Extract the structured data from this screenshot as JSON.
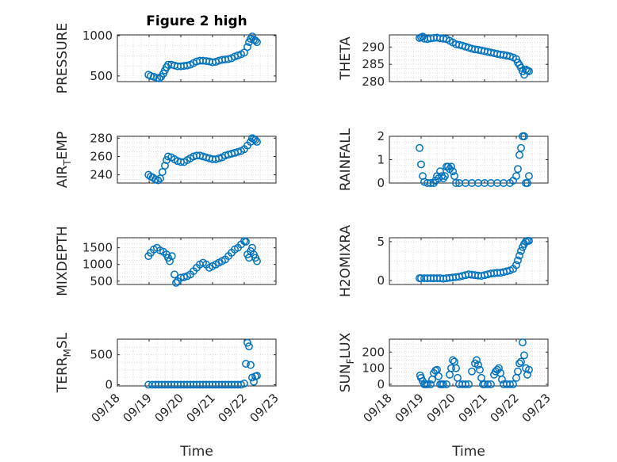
{
  "figure_title": "Figure 2 high",
  "chart_data": [
    {
      "type": "scatter",
      "title": "Figure 2 high",
      "ylabel": "PRESSURE",
      "ylabel_sub": "",
      "ylabel_rest": "",
      "xlabel": "",
      "xlim": [
        18,
        23
      ],
      "ylim": [
        430,
        1010
      ],
      "yticks": [
        500,
        1000
      ],
      "ytick_labels": [
        "500",
        "1000"
      ],
      "xticks": [
        18,
        19,
        20,
        21,
        22,
        23
      ],
      "xtick_labels": [
        "09/18",
        "09/19",
        "09/20",
        "09/21",
        "09/22",
        "09/23"
      ],
      "show_xtick_labels": false,
      "x": [
        18.98,
        19.05,
        19.15,
        19.25,
        19.32,
        19.38,
        19.45,
        19.5,
        19.55,
        19.6,
        19.7,
        19.8,
        19.9,
        20.0,
        20.1,
        20.2,
        20.3,
        20.4,
        20.5,
        20.6,
        20.7,
        20.8,
        20.9,
        21.0,
        21.1,
        21.2,
        21.3,
        21.4,
        21.5,
        21.6,
        21.7,
        21.8,
        21.9,
        22.0,
        22.1,
        22.15,
        22.2,
        22.25,
        22.3,
        22.35,
        22.4
      ],
      "y": [
        515,
        500,
        490,
        475,
        470,
        490,
        530,
        570,
        610,
        640,
        640,
        630,
        620,
        620,
        625,
        630,
        640,
        660,
        680,
        690,
        690,
        685,
        680,
        670,
        675,
        690,
        700,
        705,
        710,
        720,
        740,
        755,
        770,
        790,
        860,
        920,
        960,
        990,
        950,
        940,
        920
      ]
    },
    {
      "type": "scatter",
      "title": "",
      "ylabel": "THETA",
      "ylabel_sub": "",
      "ylabel_rest": "",
      "xlabel": "",
      "xlim": [
        18,
        23
      ],
      "ylim": [
        280,
        293.5
      ],
      "yticks": [
        280,
        285,
        290
      ],
      "ytick_labels": [
        "280",
        "285",
        "290"
      ],
      "xticks": [
        18,
        19,
        20,
        21,
        22,
        23
      ],
      "xtick_labels": [
        "09/18",
        "09/19",
        "09/20",
        "09/21",
        "09/22",
        "09/23"
      ],
      "show_xtick_labels": false,
      "x": [
        18.95,
        19.0,
        19.05,
        19.1,
        19.2,
        19.3,
        19.4,
        19.5,
        19.6,
        19.7,
        19.8,
        19.9,
        20.0,
        20.1,
        20.2,
        20.3,
        20.4,
        20.5,
        20.6,
        20.7,
        20.8,
        20.9,
        21.0,
        21.1,
        21.2,
        21.3,
        21.4,
        21.5,
        21.6,
        21.7,
        21.8,
        21.9,
        22.0,
        22.05,
        22.1,
        22.15,
        22.2,
        22.25,
        22.3,
        22.35,
        22.4
      ],
      "y": [
        292.6,
        292.8,
        293.0,
        292.4,
        292.3,
        292.5,
        292.6,
        292.7,
        292.5,
        292.4,
        292.3,
        291.8,
        291.3,
        290.8,
        290.6,
        290.4,
        290.1,
        289.8,
        289.5,
        289.3,
        289.2,
        289.0,
        288.8,
        288.6,
        288.4,
        288.2,
        288.0,
        287.8,
        287.7,
        287.5,
        287.3,
        287.0,
        286.5,
        285.5,
        284.8,
        284.0,
        283.0,
        282.0,
        283.5,
        283.2,
        283.0
      ]
    },
    {
      "type": "scatter",
      "title": "",
      "ylabel": "AIR",
      "ylabel_sub": "T",
      "ylabel_rest": "EMP",
      "xlabel": "",
      "xlim": [
        18,
        23
      ],
      "ylim": [
        231,
        282
      ],
      "yticks": [
        240,
        260,
        280
      ],
      "ytick_labels": [
        "240",
        "260",
        "280"
      ],
      "xticks": [
        18,
        19,
        20,
        21,
        22,
        23
      ],
      "xtick_labels": [
        "09/18",
        "09/19",
        "09/20",
        "09/21",
        "09/22",
        "09/23"
      ],
      "show_xtick_labels": false,
      "x": [
        18.98,
        19.05,
        19.12,
        19.2,
        19.28,
        19.35,
        19.42,
        19.5,
        19.55,
        19.6,
        19.7,
        19.8,
        19.9,
        20.0,
        20.1,
        20.2,
        20.3,
        20.4,
        20.5,
        20.6,
        20.7,
        20.8,
        20.9,
        21.0,
        21.1,
        21.2,
        21.3,
        21.4,
        21.5,
        21.6,
        21.7,
        21.8,
        21.9,
        22.0,
        22.1,
        22.2,
        22.25,
        22.3,
        22.35,
        22.4
      ],
      "y": [
        240,
        238,
        237,
        235,
        234,
        236,
        243,
        250,
        256,
        260,
        259,
        257,
        255,
        254,
        254,
        256,
        258,
        260,
        261,
        261,
        260,
        259,
        258,
        257,
        257,
        258,
        259,
        261,
        262,
        263,
        264,
        265,
        266,
        268,
        272,
        276,
        280,
        279,
        278,
        276
      ]
    },
    {
      "type": "scatter",
      "title": "",
      "ylabel": "RAINFALL",
      "ylabel_sub": "",
      "ylabel_rest": "",
      "xlabel": "",
      "xlim": [
        18,
        23
      ],
      "ylim": [
        0,
        2
      ],
      "yticks": [
        0,
        1,
        2
      ],
      "ytick_labels": [
        "0",
        "1",
        "2"
      ],
      "xticks": [
        18,
        19,
        20,
        21,
        22,
        23
      ],
      "xtick_labels": [
        "09/18",
        "09/19",
        "09/20",
        "09/21",
        "09/22",
        "09/23"
      ],
      "show_xtick_labels": false,
      "x": [
        18.95,
        19.0,
        19.05,
        19.1,
        19.2,
        19.3,
        19.4,
        19.45,
        19.5,
        19.55,
        19.6,
        19.65,
        19.7,
        19.75,
        19.8,
        19.85,
        19.9,
        19.95,
        20.0,
        20.05,
        20.1,
        20.2,
        20.4,
        20.6,
        20.8,
        21.0,
        21.2,
        21.4,
        21.6,
        21.8,
        21.9,
        22.0,
        22.05,
        22.1,
        22.15,
        22.2,
        22.25,
        22.3,
        22.35,
        22.4
      ],
      "y": [
        1.5,
        0.8,
        0.3,
        0.05,
        0.0,
        0.0,
        0.0,
        0.1,
        0.3,
        0.2,
        0.5,
        0.3,
        0.2,
        0.3,
        0.7,
        0.7,
        0.6,
        0.7,
        0.5,
        0.3,
        0.0,
        0.0,
        0.0,
        0.0,
        0.0,
        0.0,
        0.0,
        0.0,
        0.0,
        0.0,
        0.1,
        0.3,
        0.6,
        1.2,
        1.5,
        2.0,
        2.0,
        0.0,
        0.0,
        0.3
      ]
    },
    {
      "type": "scatter",
      "title": "",
      "ylabel": "MIXDEPTH",
      "ylabel_sub": "",
      "ylabel_rest": "",
      "xlabel": "",
      "xlim": [
        18,
        23
      ],
      "ylim": [
        400,
        1800
      ],
      "yticks": [
        500,
        1000,
        1500
      ],
      "ytick_labels": [
        "500",
        "1000",
        "1500"
      ],
      "xticks": [
        18,
        19,
        20,
        21,
        22,
        23
      ],
      "xtick_labels": [
        "09/18",
        "09/19",
        "09/20",
        "09/21",
        "09/22",
        "09/23"
      ],
      "show_xtick_labels": false,
      "x": [
        18.98,
        19.05,
        19.15,
        19.25,
        19.35,
        19.45,
        19.55,
        19.6,
        19.65,
        19.72,
        19.8,
        19.85,
        19.9,
        20.0,
        20.1,
        20.2,
        20.3,
        20.4,
        20.5,
        20.6,
        20.7,
        20.8,
        20.9,
        21.0,
        21.1,
        21.2,
        21.3,
        21.4,
        21.5,
        21.6,
        21.7,
        21.8,
        21.9,
        22.0,
        22.05,
        22.1,
        22.15,
        22.2,
        22.25,
        22.3,
        22.35,
        22.4
      ],
      "y": [
        1250,
        1350,
        1450,
        1500,
        1420,
        1380,
        1300,
        1200,
        1100,
        1250,
        700,
        450,
        500,
        600,
        620,
        650,
        700,
        800,
        900,
        1000,
        1050,
        1000,
        900,
        950,
        1000,
        1050,
        1100,
        1150,
        1250,
        1350,
        1450,
        1500,
        1600,
        1700,
        1680,
        1300,
        1200,
        1400,
        1500,
        1300,
        1200,
        1100
      ]
    },
    {
      "type": "scatter",
      "title": "",
      "ylabel": "H2OMIXRA",
      "ylabel_sub": "",
      "ylabel_rest": "",
      "xlabel": "",
      "xlim": [
        18,
        23
      ],
      "ylim": [
        -0.5,
        5.5
      ],
      "yticks": [
        0,
        5
      ],
      "ytick_labels": [
        "0",
        "5"
      ],
      "xticks": [
        18,
        19,
        20,
        21,
        22,
        23
      ],
      "xtick_labels": [
        "09/18",
        "09/19",
        "09/20",
        "09/21",
        "09/22",
        "09/23"
      ],
      "show_xtick_labels": false,
      "x": [
        18.95,
        19.0,
        19.1,
        19.2,
        19.3,
        19.4,
        19.5,
        19.6,
        19.7,
        19.8,
        19.9,
        20.0,
        20.1,
        20.2,
        20.3,
        20.4,
        20.5,
        20.6,
        20.7,
        20.8,
        20.9,
        21.0,
        21.1,
        21.2,
        21.3,
        21.4,
        21.5,
        21.6,
        21.7,
        21.8,
        21.9,
        22.0,
        22.05,
        22.1,
        22.15,
        22.2,
        22.25,
        22.3,
        22.35,
        22.4
      ],
      "y": [
        0.3,
        0.3,
        0.3,
        0.3,
        0.3,
        0.3,
        0.3,
        0.3,
        0.25,
        0.3,
        0.35,
        0.4,
        0.45,
        0.5,
        0.6,
        0.7,
        0.8,
        0.75,
        0.7,
        0.65,
        0.6,
        0.7,
        0.8,
        0.9,
        0.95,
        1.0,
        1.0,
        1.1,
        1.2,
        1.3,
        1.5,
        2.0,
        2.6,
        3.2,
        3.8,
        4.3,
        4.7,
        5.0,
        5.1,
        5.1
      ]
    },
    {
      "type": "scatter",
      "title": "",
      "ylabel": "TERR",
      "ylabel_sub": "M",
      "ylabel_rest": "SL",
      "xlabel": "Time",
      "xlim": [
        18,
        23
      ],
      "ylim": [
        -20,
        760
      ],
      "yticks": [
        0,
        500
      ],
      "ytick_labels": [
        "0",
        "500"
      ],
      "xticks": [
        18,
        19,
        20,
        21,
        22,
        23
      ],
      "xtick_labels": [
        "09/18",
        "09/19",
        "09/20",
        "09/21",
        "09/22",
        "09/23"
      ],
      "show_xtick_labels": true,
      "x": [
        18.98,
        19.1,
        19.2,
        19.3,
        19.4,
        19.5,
        19.6,
        19.7,
        19.8,
        19.9,
        20.0,
        20.1,
        20.2,
        20.3,
        20.4,
        20.5,
        20.6,
        20.7,
        20.8,
        20.9,
        21.0,
        21.1,
        21.2,
        21.3,
        21.4,
        21.5,
        21.6,
        21.7,
        21.8,
        21.9,
        22.0,
        22.05,
        22.1,
        22.15,
        22.2,
        22.25,
        22.3,
        22.35,
        22.4
      ],
      "y": [
        0,
        0,
        0,
        0,
        0,
        0,
        0,
        0,
        0,
        0,
        0,
        0,
        0,
        0,
        0,
        0,
        0,
        0,
        0,
        0,
        0,
        0,
        0,
        0,
        0,
        0,
        0,
        0,
        0,
        0,
        20,
        350,
        700,
        640,
        330,
        120,
        50,
        140,
        150
      ]
    },
    {
      "type": "scatter",
      "title": "",
      "ylabel": "SUN",
      "ylabel_sub": "F",
      "ylabel_rest": "LUX",
      "xlabel": "Time",
      "xlim": [
        18,
        23
      ],
      "ylim": [
        -10,
        280
      ],
      "yticks": [
        0,
        100,
        200
      ],
      "ytick_labels": [
        "0",
        "100",
        "200"
      ],
      "xticks": [
        18,
        19,
        20,
        21,
        22,
        23
      ],
      "xtick_labels": [
        "09/18",
        "09/19",
        "09/20",
        "09/21",
        "09/22",
        "09/23"
      ],
      "show_xtick_labels": true,
      "x": [
        18.97,
        19.0,
        19.05,
        19.1,
        19.15,
        19.2,
        19.3,
        19.35,
        19.4,
        19.45,
        19.5,
        19.55,
        19.6,
        19.65,
        19.7,
        19.8,
        19.9,
        19.95,
        20.0,
        20.05,
        20.1,
        20.15,
        20.2,
        20.3,
        20.4,
        20.5,
        20.6,
        20.7,
        20.75,
        20.8,
        20.85,
        20.9,
        20.95,
        21.0,
        21.1,
        21.2,
        21.3,
        21.35,
        21.4,
        21.45,
        21.5,
        21.55,
        21.6,
        21.7,
        21.8,
        21.9,
        22.0,
        22.05,
        22.1,
        22.15,
        22.2,
        22.25,
        22.3,
        22.35,
        22.4
      ],
      "y": [
        55,
        40,
        20,
        0,
        0,
        0,
        0,
        30,
        70,
        85,
        90,
        50,
        0,
        0,
        0,
        0,
        60,
        100,
        150,
        140,
        100,
        40,
        0,
        0,
        0,
        0,
        80,
        130,
        150,
        120,
        90,
        40,
        0,
        0,
        0,
        0,
        60,
        80,
        90,
        100,
        70,
        30,
        0,
        0,
        0,
        0,
        40,
        80,
        130,
        140,
        260,
        180,
        100,
        60,
        90
      ]
    }
  ]
}
